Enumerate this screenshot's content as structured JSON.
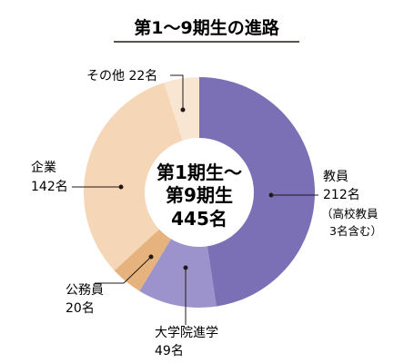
{
  "chart_data": {
    "type": "pie",
    "title": "第1～9期生の進路",
    "center_text": [
      "第1期生～",
      "第9期生",
      "445名"
    ],
    "categories": [
      "教員",
      "大学院進学",
      "公務員",
      "企業",
      "その他"
    ],
    "values": [
      212,
      49,
      20,
      142,
      22
    ],
    "unit": "名",
    "total": 445,
    "colors": [
      "#7b6fb5",
      "#9d93cc",
      "#e6b27e",
      "#f5d6b7",
      "#f8e6d2"
    ],
    "labels": {
      "teacher": {
        "name": "教員",
        "value": "212名",
        "note1": "（高校教員",
        "note2": "3名含む）"
      },
      "grad": {
        "name": "大学院進学",
        "value": "49名"
      },
      "civil": {
        "name": "公務員",
        "value": "20名"
      },
      "company": {
        "name": "企業",
        "value": "142名"
      },
      "other": {
        "text": "その他 22名"
      }
    }
  }
}
